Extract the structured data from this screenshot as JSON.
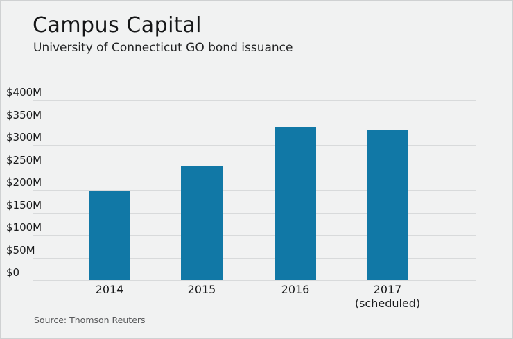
{
  "page": {
    "background_color": "#f1f2f2",
    "bar_color": "#1178a6",
    "gridline_color": "#d8dadb"
  },
  "header": {
    "title": "Campus Capital",
    "subtitle": "University of Connecticut GO bond issuance"
  },
  "footer": {
    "source": "Source: Thomson Reuters"
  },
  "chart_data": {
    "type": "bar",
    "title": "Campus Capital",
    "subtitle": "University of Connecticut GO bond issuance",
    "unit": "USD millions",
    "categories": [
      "2014",
      "2015",
      "2016",
      "2017"
    ],
    "category_sublabels": [
      "",
      "",
      "",
      "(scheduled)"
    ],
    "values": [
      198,
      252,
      340,
      334
    ],
    "ylim": [
      0,
      400
    ],
    "ytick_interval": 50,
    "ytick_labels_top_to_bottom": [
      "$400M",
      "$350M",
      "$300M",
      "$250M",
      "$200M",
      "$150M",
      "$100M",
      "$50M",
      "$0"
    ],
    "grid": true,
    "legend": false,
    "bar_color": "#1178a6",
    "source": "Source: Thomson Reuters"
  }
}
